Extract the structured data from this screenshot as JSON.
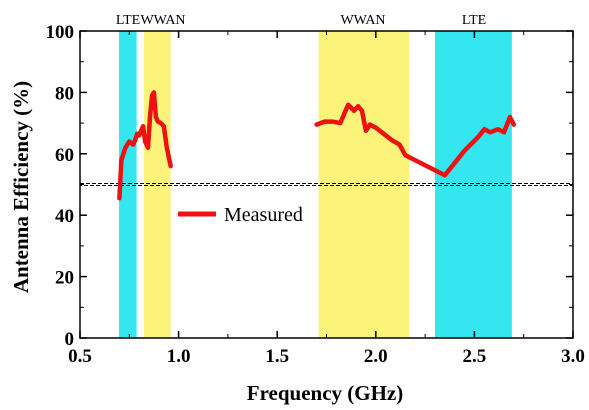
{
  "chart_data": {
    "type": "line",
    "title": "",
    "xlabel": "Frequency (GHz)",
    "ylabel": "Antenna Efficiency (%)",
    "xlim": [
      0.5,
      3.0
    ],
    "ylim": [
      0,
      100
    ],
    "xticks": [
      "0.5",
      "1.0",
      "1.5",
      "2.0",
      "2.5",
      "3.0"
    ],
    "yticks": [
      "0",
      "20",
      "40",
      "60",
      "80",
      "100"
    ],
    "grid": false,
    "legend_position": "center-left",
    "reference_line": {
      "y": 50,
      "style": "dashed"
    },
    "bands": [
      {
        "label": "LTE",
        "x_range": [
          0.698,
          0.787
        ],
        "color": "#33e6f0"
      },
      {
        "label": "WWAN",
        "x_range": [
          0.824,
          0.96
        ],
        "color": "#fbf37a"
      },
      {
        "label": "WWAN",
        "x_range": [
          1.71,
          2.17
        ],
        "color": "#fbf37a"
      },
      {
        "label": "LTE",
        "x_range": [
          2.3,
          2.69
        ],
        "color": "#33e6f0"
      }
    ],
    "series": [
      {
        "name": "Measured",
        "color": "#ee1111",
        "segments": [
          {
            "x": [
              0.7,
              0.71,
              0.73,
              0.75,
              0.77,
              0.78,
              0.79,
              0.8,
              0.82,
              0.83,
              0.845,
              0.855,
              0.865,
              0.875,
              0.885,
              0.895,
              0.91,
              0.925,
              0.94,
              0.96
            ],
            "y": [
              45.5,
              58,
              62,
              64,
              63,
              64.5,
              66.5,
              66,
              69,
              64,
              62,
              72,
              79,
              80,
              72,
              70.5,
              70,
              69,
              62,
              56
            ]
          },
          {
            "x": [
              1.7,
              1.74,
              1.78,
              1.82,
              1.84,
              1.86,
              1.89,
              1.91,
              1.93,
              1.95,
              1.97,
              2.0,
              2.04,
              2.08,
              2.12,
              2.15,
              2.35,
              2.45,
              2.52,
              2.55,
              2.58,
              2.62,
              2.65,
              2.68,
              2.7
            ],
            "y": [
              69.5,
              70.5,
              70.5,
              70,
              73,
              76,
              74,
              75.5,
              74,
              67.5,
              69.5,
              68.5,
              66.5,
              64.5,
              63,
              59.5,
              53,
              61,
              65.5,
              68,
              67,
              68,
              67,
              72,
              69.5
            ]
          }
        ]
      }
    ]
  }
}
